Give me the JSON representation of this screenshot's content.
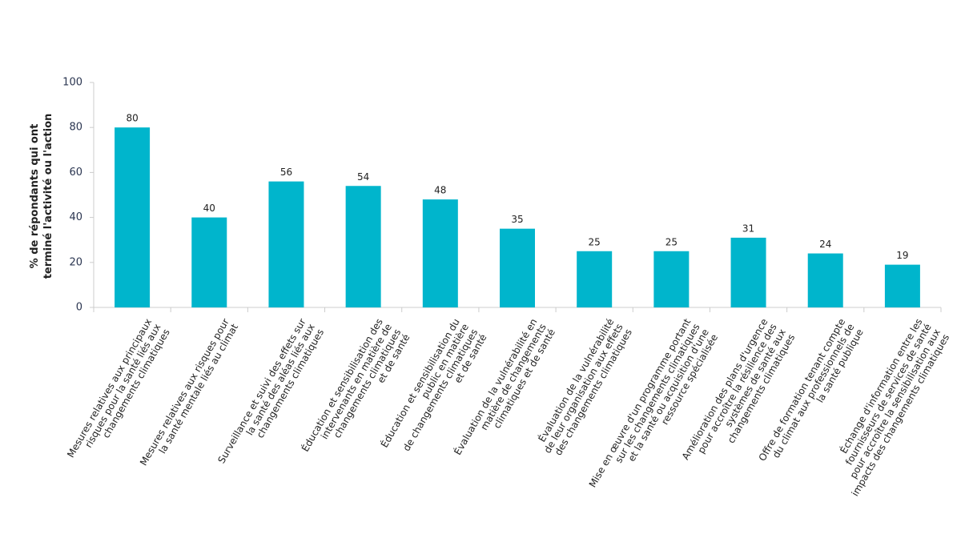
{
  "chart_data": {
    "type": "bar",
    "y_label": "% de répondants qui ont\nterminé l'activité ou l'action",
    "categories": [
      "Mesures relatives aux principaux\nrisques pour la santé liés aux\nchangements climatiques",
      "Mesures relatives aux risques pour\nla santé mentale liés au climat",
      "Surveillance et suivi des effets sur\nla santé des aléas liés aux\nchangements climatiques",
      "Éducation et sensibilisation des\nintervenants en matière de\nchangements climatiques\net de santé",
      "Éducation et sensibilisation du\npublic en matière\nde changements climatiques\net de santé",
      "Évaluation de la vulnérabilité en\nmatière de changements\nclimatiques et de santé",
      "Évaluation de la vulnérabilité\nde leur organisation aux effets\ndes changements climatiques",
      "Mise en œuvre d'un programme portant\nsur les changements climatiques\net la santé ou acquisition d'une\nressource spécialisée",
      "Amélioration des plans d'urgence\npour accroître la résilience des\nsystèmes de santé aux\nchangements climatiques",
      "Offre de formation tenant compte\ndu climat aux professionnels de\nla santé publique",
      "Échange d'information entre les\nfournisseurs de services de santé\npour accroître la sensibilisation aux\nimpacts des changements climatiques"
    ],
    "values": [
      80,
      40,
      56,
      54,
      48,
      35,
      25,
      25,
      31,
      24,
      19
    ],
    "color": "#00b5cc",
    "ylim": [
      0,
      100
    ],
    "yticks": [
      0,
      20,
      40,
      60,
      80,
      100
    ]
  }
}
